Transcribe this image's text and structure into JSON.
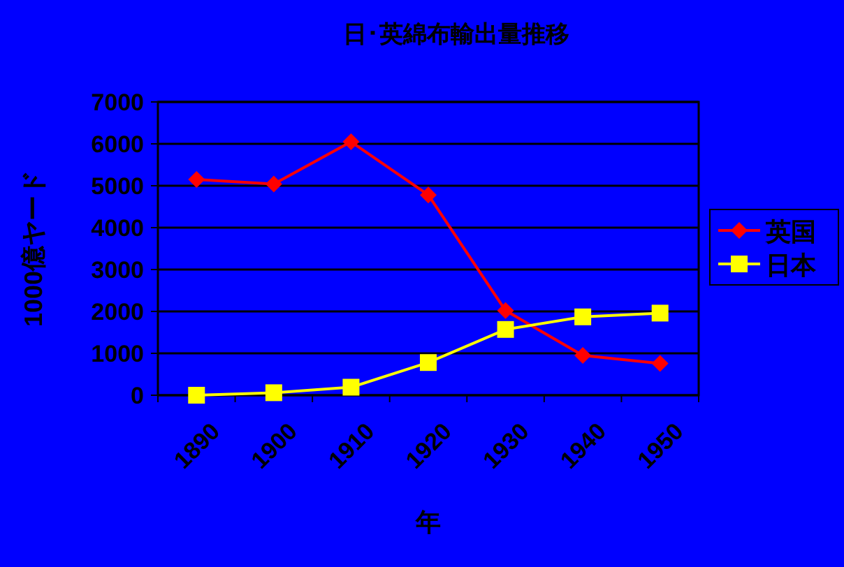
{
  "chart_data": {
    "type": "line",
    "title": "日･英綿布輸出量推移",
    "xlabel": "年",
    "ylabel": "1000億ヤード",
    "categories": [
      "1890",
      "1900",
      "1910",
      "1920",
      "1930",
      "1940",
      "1950"
    ],
    "series": [
      {
        "name": "英国",
        "color": "#ff0000",
        "marker": "diamond",
        "values": [
          5150,
          5040,
          6050,
          4780,
          2020,
          950,
          760
        ]
      },
      {
        "name": "日本",
        "color": "#ffff00",
        "marker": "square",
        "values": [
          0,
          60,
          190,
          780,
          1570,
          1870,
          1960
        ]
      }
    ],
    "ylim": [
      0,
      7000
    ],
    "yticks": [
      0,
      1000,
      2000,
      3000,
      4000,
      5000,
      6000,
      7000
    ],
    "grid": "y",
    "legend": "right"
  }
}
